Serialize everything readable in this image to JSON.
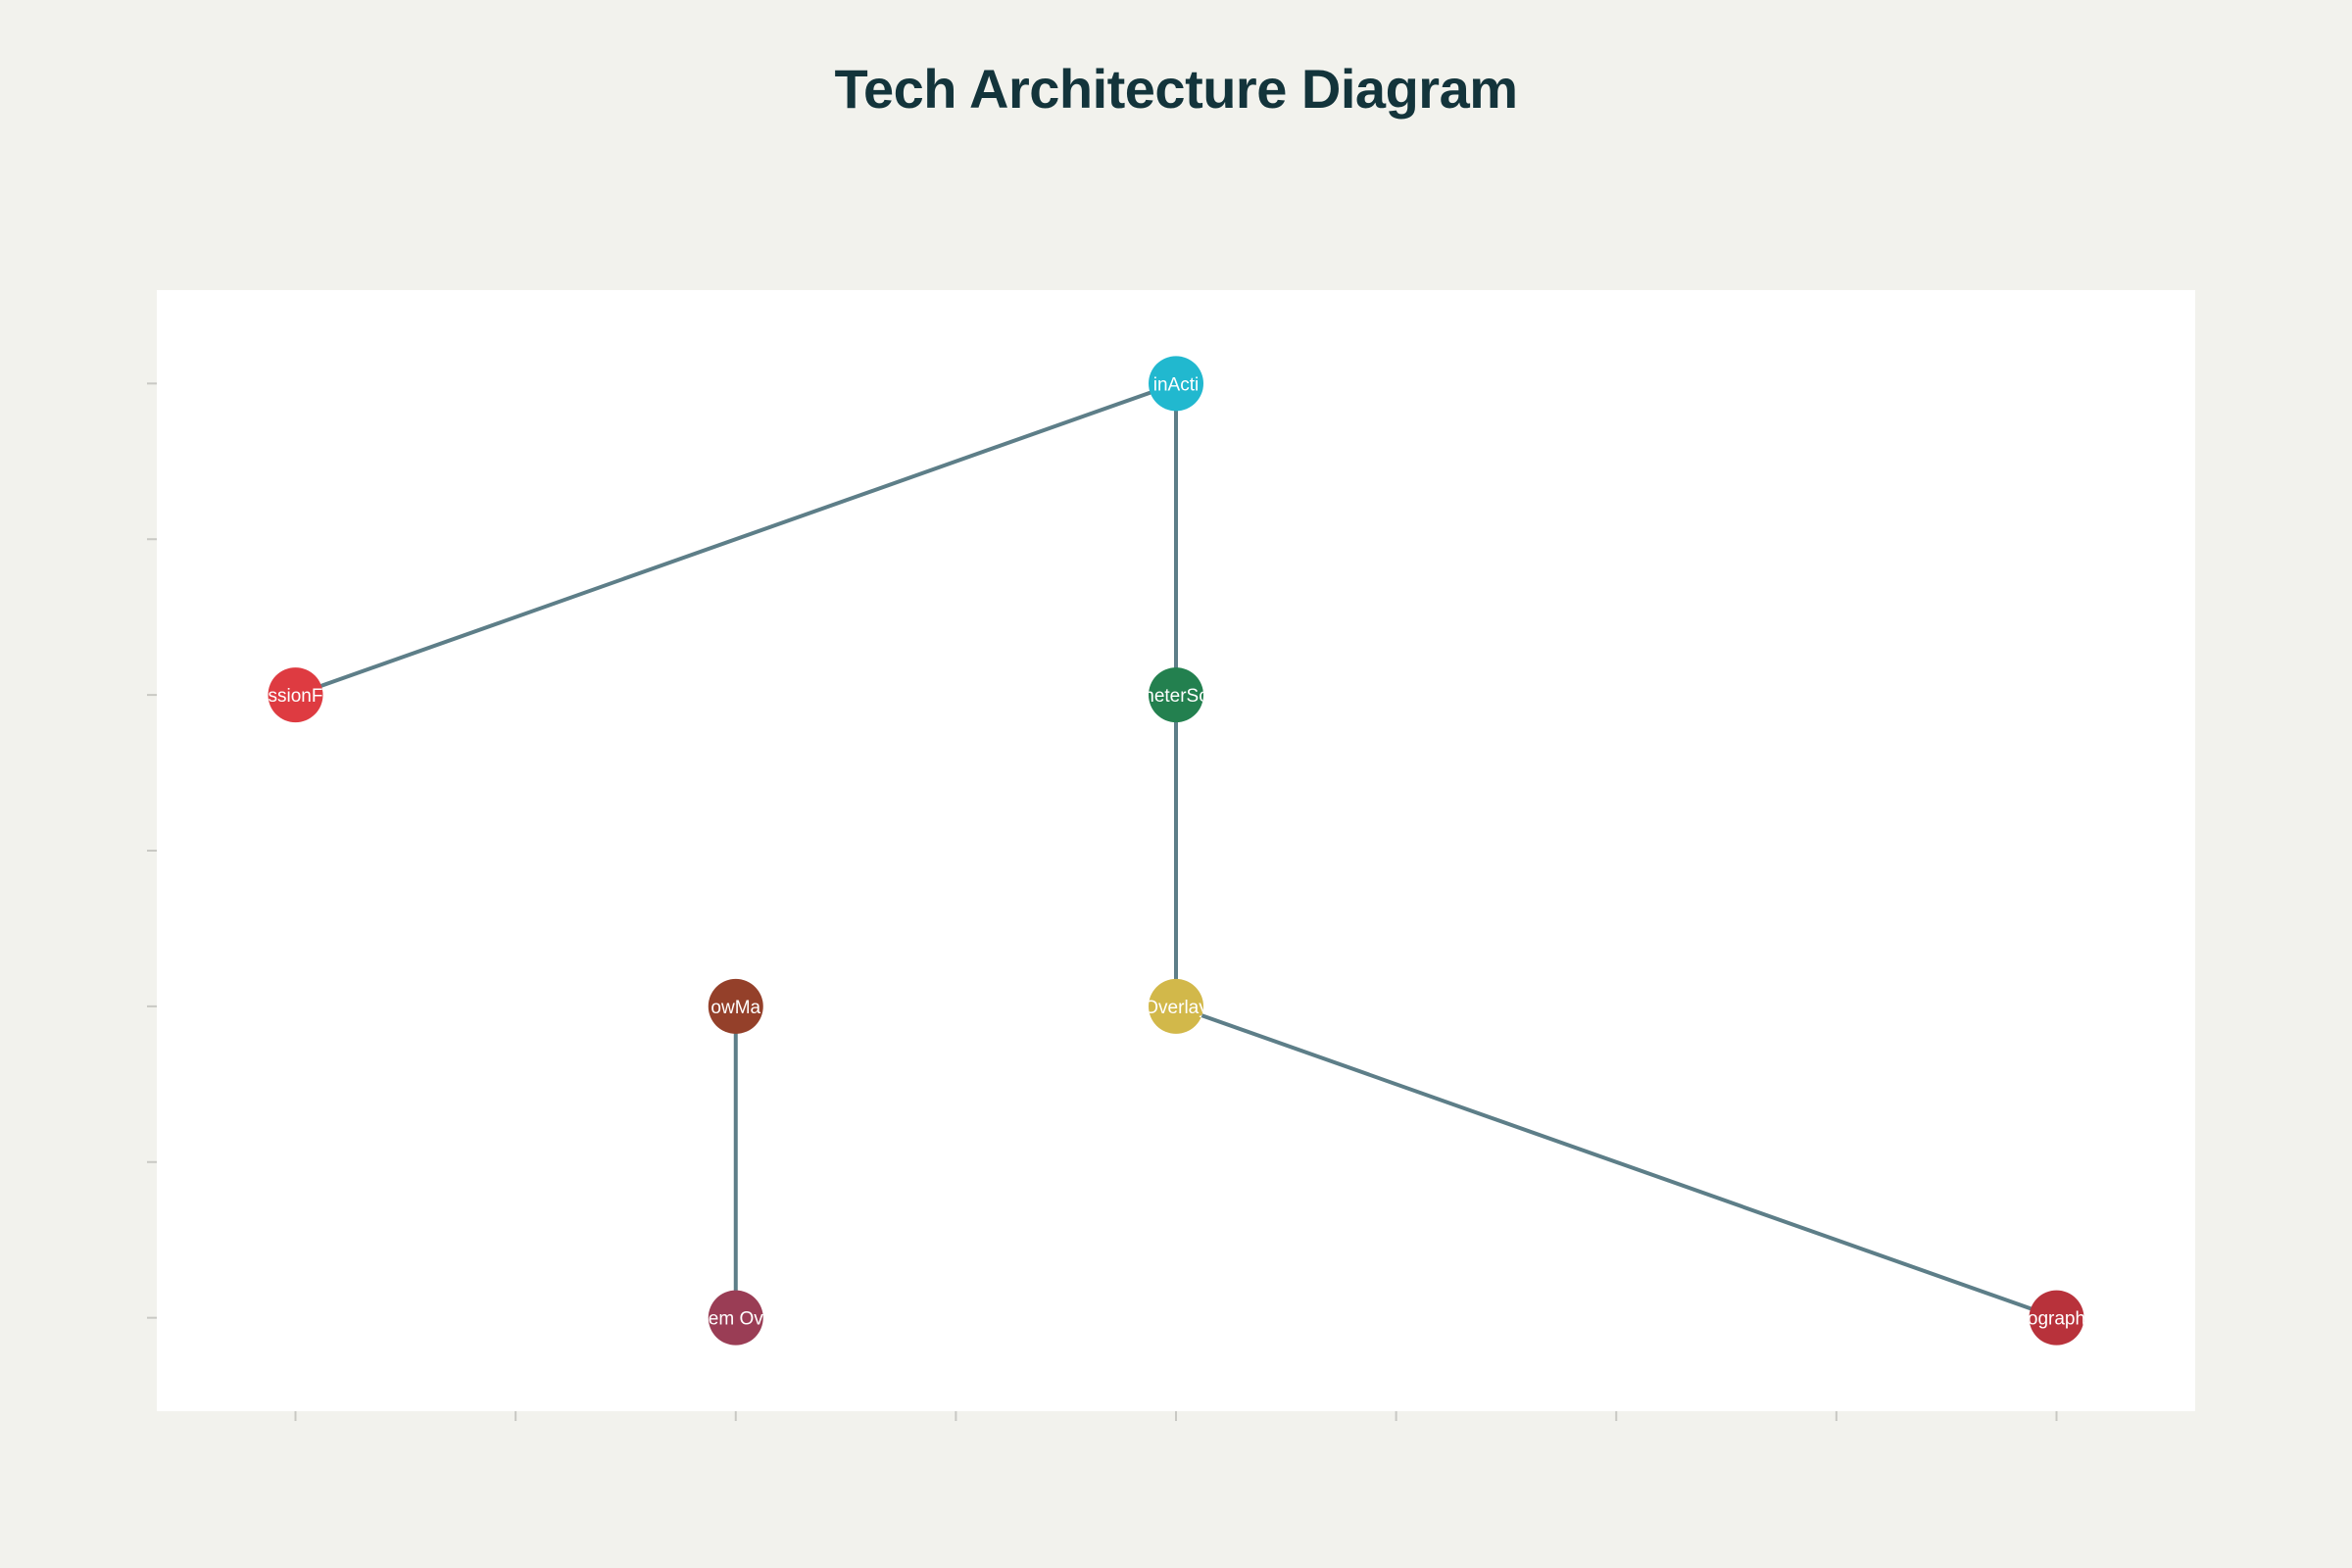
{
  "title": "Tech Architecture Diagram",
  "colors": {
    "background": "#f2f2ed",
    "plot_background": "#ffffff",
    "edge": "#5d7e88",
    "tick": "#c9c9c4",
    "title": "#13343b"
  },
  "chart_data": {
    "type": "network",
    "grid": false,
    "x_ticks": [
      0,
      1,
      2,
      3,
      4,
      5,
      6,
      7,
      8
    ],
    "y_ticks": [
      0,
      1,
      2,
      3,
      4,
      5,
      6
    ],
    "xlim": [
      -0.63,
      8.63
    ],
    "ylim": [
      -0.6,
      6.6
    ],
    "nodes": [
      {
        "id": "n1",
        "label": "inActi",
        "x": 4,
        "y": 6,
        "color": "#21b8cf"
      },
      {
        "id": "n2",
        "label": "ssionF",
        "x": 0,
        "y": 4,
        "color": "#de3b41"
      },
      {
        "id": "n3",
        "label": "neterSc",
        "x": 4,
        "y": 4,
        "color": "#23804f"
      },
      {
        "id": "n4",
        "label": "owMa",
        "x": 2,
        "y": 2,
        "color": "#94402a"
      },
      {
        "id": "n5",
        "label": "Overlay",
        "x": 4,
        "y": 2,
        "color": "#d2b84a"
      },
      {
        "id": "n6",
        "label": "em Ov",
        "x": 2,
        "y": 0,
        "color": "#9a3d55"
      },
      {
        "id": "n7",
        "label": "ograph",
        "x": 8,
        "y": 0,
        "color": "#b8323b"
      }
    ],
    "edges": [
      {
        "from": "n1",
        "to": "n2"
      },
      {
        "from": "n1",
        "to": "n3"
      },
      {
        "from": "n3",
        "to": "n5"
      },
      {
        "from": "n4",
        "to": "n6"
      },
      {
        "from": "n5",
        "to": "n7"
      }
    ]
  }
}
